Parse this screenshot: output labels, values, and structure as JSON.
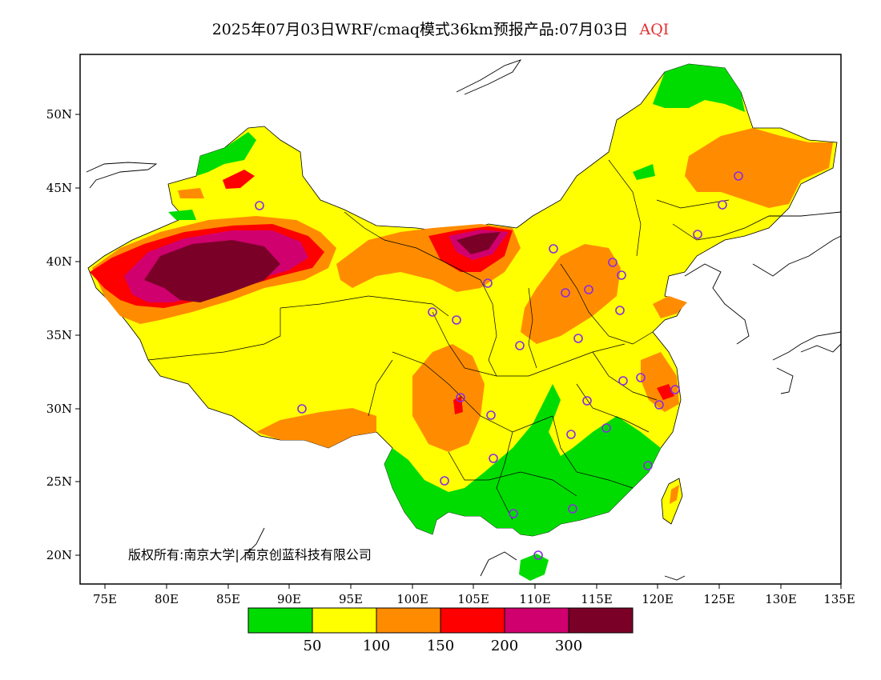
{
  "title": {
    "main": "2025年07月03日WRF/cmaq模式36km预报产品:07月03日",
    "variable": "AQI"
  },
  "copyright": "版权所有:南京大学| 南京创蓝科技有限公司",
  "colors": {
    "good": "#00dc00",
    "moderate": "#ffff00",
    "usg": "#ff8c00",
    "unhealthy": "#ff0000",
    "very_unhealthy": "#d0006e",
    "hazardous": "#7a0028",
    "border": "#000000",
    "station": "#8a2be2"
  },
  "axes": {
    "lat_labels": [
      "50N",
      "45N",
      "40N",
      "35N",
      "30N",
      "25N",
      "20N"
    ],
    "lon_labels": [
      "75E",
      "80E",
      "85E",
      "90E",
      "95E",
      "100E",
      "105E",
      "110E",
      "115E",
      "120E",
      "125E",
      "130E",
      "135E"
    ]
  },
  "legend": {
    "colors": [
      "#00dc00",
      "#ffff00",
      "#ff8c00",
      "#ff0000",
      "#d0006e",
      "#7a0028"
    ],
    "labels": [
      "50",
      "100",
      "150",
      "200",
      "300"
    ]
  }
}
